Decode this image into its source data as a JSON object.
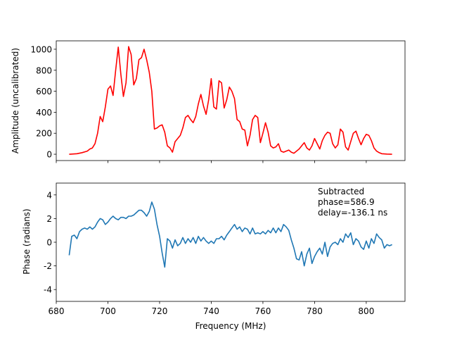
{
  "chart_data": [
    {
      "type": "line",
      "title": "",
      "xlabel": "",
      "ylabel": "Amplitude (uncalibrated)",
      "xlim": [
        680,
        815
      ],
      "ylim": [
        -60,
        1080
      ],
      "yticks": [
        0,
        200,
        400,
        600,
        800,
        1000
      ],
      "xticks": [
        680,
        700,
        720,
        740,
        760,
        780,
        800
      ],
      "show_xtick_labels": false,
      "grid": false,
      "color": "#ff0000",
      "series": [
        {
          "x": [
            685,
            688,
            690,
            692,
            693,
            694,
            695,
            696,
            697,
            698,
            699,
            700,
            701,
            702,
            703,
            704,
            705,
            706,
            707,
            708,
            709,
            710,
            711,
            712,
            713,
            714,
            715,
            716,
            717,
            718,
            719,
            720,
            721,
            722,
            723,
            724,
            725,
            726,
            727,
            728,
            729,
            730,
            731,
            732,
            733,
            734,
            735,
            736,
            737,
            738,
            739,
            740,
            741,
            742,
            743,
            744,
            745,
            746,
            747,
            748,
            749,
            750,
            751,
            752,
            753,
            754,
            755,
            756,
            757,
            758,
            759,
            760,
            761,
            762,
            763,
            764,
            765,
            766,
            767,
            768,
            769,
            770,
            771,
            772,
            773,
            774,
            775,
            776,
            777,
            778,
            779,
            780,
            781,
            782,
            783,
            784,
            785,
            786,
            787,
            788,
            789,
            790,
            791,
            792,
            793,
            794,
            795,
            796,
            797,
            798,
            799,
            800,
            801,
            802,
            803,
            804,
            805,
            806,
            808,
            810
          ],
          "y": [
            0,
            5,
            15,
            30,
            50,
            60,
            100,
            200,
            360,
            310,
            450,
            620,
            650,
            560,
            800,
            1020,
            760,
            550,
            680,
            1025,
            950,
            660,
            720,
            900,
            920,
            1000,
            900,
            780,
            600,
            240,
            250,
            270,
            280,
            210,
            80,
            60,
            20,
            120,
            150,
            180,
            250,
            350,
            370,
            330,
            300,
            360,
            480,
            570,
            460,
            380,
            520,
            720,
            450,
            430,
            700,
            680,
            440,
            520,
            640,
            600,
            530,
            330,
            310,
            240,
            230,
            80,
            180,
            330,
            370,
            350,
            110,
            200,
            300,
            210,
            80,
            60,
            70,
            100,
            30,
            20,
            30,
            40,
            20,
            10,
            30,
            50,
            80,
            110,
            60,
            40,
            80,
            150,
            100,
            50,
            130,
            180,
            210,
            200,
            100,
            60,
            90,
            240,
            210,
            70,
            40,
            120,
            200,
            220,
            150,
            90,
            150,
            190,
            180,
            130,
            60,
            30,
            15,
            5,
            2,
            0
          ],
          "color": "#ff0000"
        }
      ]
    },
    {
      "type": "line",
      "title": "",
      "xlabel": "Frequency (MHz)",
      "ylabel": "Phase (radians)",
      "xlim": [
        680,
        815
      ],
      "ylim": [
        -5,
        5
      ],
      "yticks": [
        -4,
        -2,
        0,
        2,
        4
      ],
      "xticks": [
        680,
        700,
        720,
        740,
        760,
        780,
        800
      ],
      "grid": false,
      "color": "#1f77b4",
      "annotation": "Subtracted\nphase=586.9\ndelay=-136.1 ns",
      "series": [
        {
          "x": [
            685,
            686,
            687,
            688,
            689,
            690,
            691,
            692,
            693,
            694,
            695,
            696,
            697,
            698,
            699,
            700,
            701,
            702,
            703,
            704,
            705,
            706,
            707,
            708,
            709,
            710,
            711,
            712,
            713,
            714,
            715,
            716,
            717,
            718,
            719,
            720,
            721,
            722,
            723,
            724,
            725,
            726,
            727,
            728,
            729,
            730,
            731,
            732,
            733,
            734,
            735,
            736,
            737,
            738,
            739,
            740,
            741,
            742,
            743,
            744,
            745,
            746,
            747,
            748,
            749,
            750,
            751,
            752,
            753,
            754,
            755,
            756,
            757,
            758,
            759,
            760,
            761,
            762,
            763,
            764,
            765,
            766,
            767,
            768,
            769,
            770,
            771,
            772,
            773,
            774,
            775,
            776,
            777,
            778,
            779,
            780,
            781,
            782,
            783,
            784,
            785,
            786,
            787,
            788,
            789,
            790,
            791,
            792,
            793,
            794,
            795,
            796,
            797,
            798,
            799,
            800,
            801,
            802,
            803,
            804,
            805,
            806,
            807,
            808,
            809,
            810
          ],
          "y": [
            -1.1,
            0.5,
            0.6,
            0.3,
            0.9,
            1.1,
            1.2,
            1.1,
            1.3,
            1.1,
            1.3,
            1.7,
            2.0,
            1.9,
            1.5,
            1.7,
            2.0,
            2.2,
            2.0,
            1.9,
            2.1,
            2.1,
            2.0,
            2.2,
            2.2,
            2.3,
            2.5,
            2.7,
            2.7,
            2.5,
            2.2,
            2.6,
            3.4,
            2.8,
            1.5,
            0.5,
            -0.9,
            -2.1,
            0.3,
            0.1,
            -0.5,
            0.2,
            -0.3,
            -0.1,
            0.4,
            -0.1,
            0.3,
            0.0,
            0.4,
            -0.1,
            0.5,
            0.1,
            0.4,
            0.1,
            -0.1,
            0.1,
            -0.1,
            0.3,
            0.3,
            0.5,
            0.2,
            0.6,
            0.9,
            1.2,
            1.5,
            1.1,
            1.3,
            0.9,
            1.2,
            1.1,
            0.7,
            1.2,
            0.7,
            0.8,
            0.7,
            0.9,
            0.7,
            1.0,
            0.8,
            1.2,
            0.8,
            1.2,
            0.9,
            1.5,
            1.3,
            1.0,
            0.2,
            -0.5,
            -1.4,
            -1.5,
            -0.8,
            -2.0,
            -1.0,
            -0.5,
            -1.8,
            -1.2,
            -0.8,
            -0.5,
            -1.0,
            0.0,
            -1.2,
            -0.4,
            -0.1,
            0.0,
            -0.2,
            0.3,
            0.0,
            0.7,
            0.4,
            0.8,
            -0.2,
            0.3,
            0.1,
            -0.4,
            -0.6,
            0.1,
            -0.5,
            0.3,
            -0.1,
            0.7,
            0.4,
            0.2,
            -0.5,
            -0.2,
            -0.3,
            -0.2
          ],
          "color": "#1f77b4"
        }
      ]
    }
  ]
}
